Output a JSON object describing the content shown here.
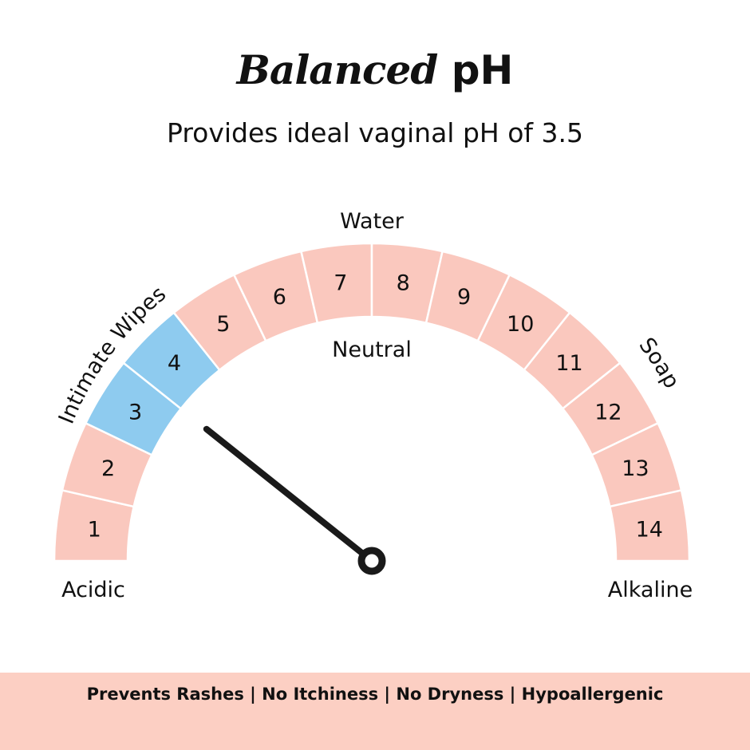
{
  "title": {
    "emphasis": "Balanced",
    "rest": "pH"
  },
  "subtitle": "Provides ideal vaginal pH of 3.5",
  "gauge": {
    "segments": [
      "1",
      "2",
      "3",
      "4",
      "5",
      "6",
      "7",
      "8",
      "9",
      "10",
      "11",
      "12",
      "13",
      "14"
    ],
    "highlighted": [
      "3",
      "4"
    ],
    "needle_value": 3.5,
    "labels": {
      "left": "Acidic",
      "right": "Alkaline",
      "top": "Water",
      "center": "Neutral",
      "highlight_callout": "Intimate Wipes",
      "high_callout": "Soap"
    },
    "colors": {
      "segment": "#fac8be",
      "highlight": "#8ecbef",
      "divider": "#ffffff",
      "needle": "#1a1a1a"
    }
  },
  "footer": {
    "text": "Prevents Rashes | No Itchiness | No Dryness | Hypoallergenic"
  }
}
